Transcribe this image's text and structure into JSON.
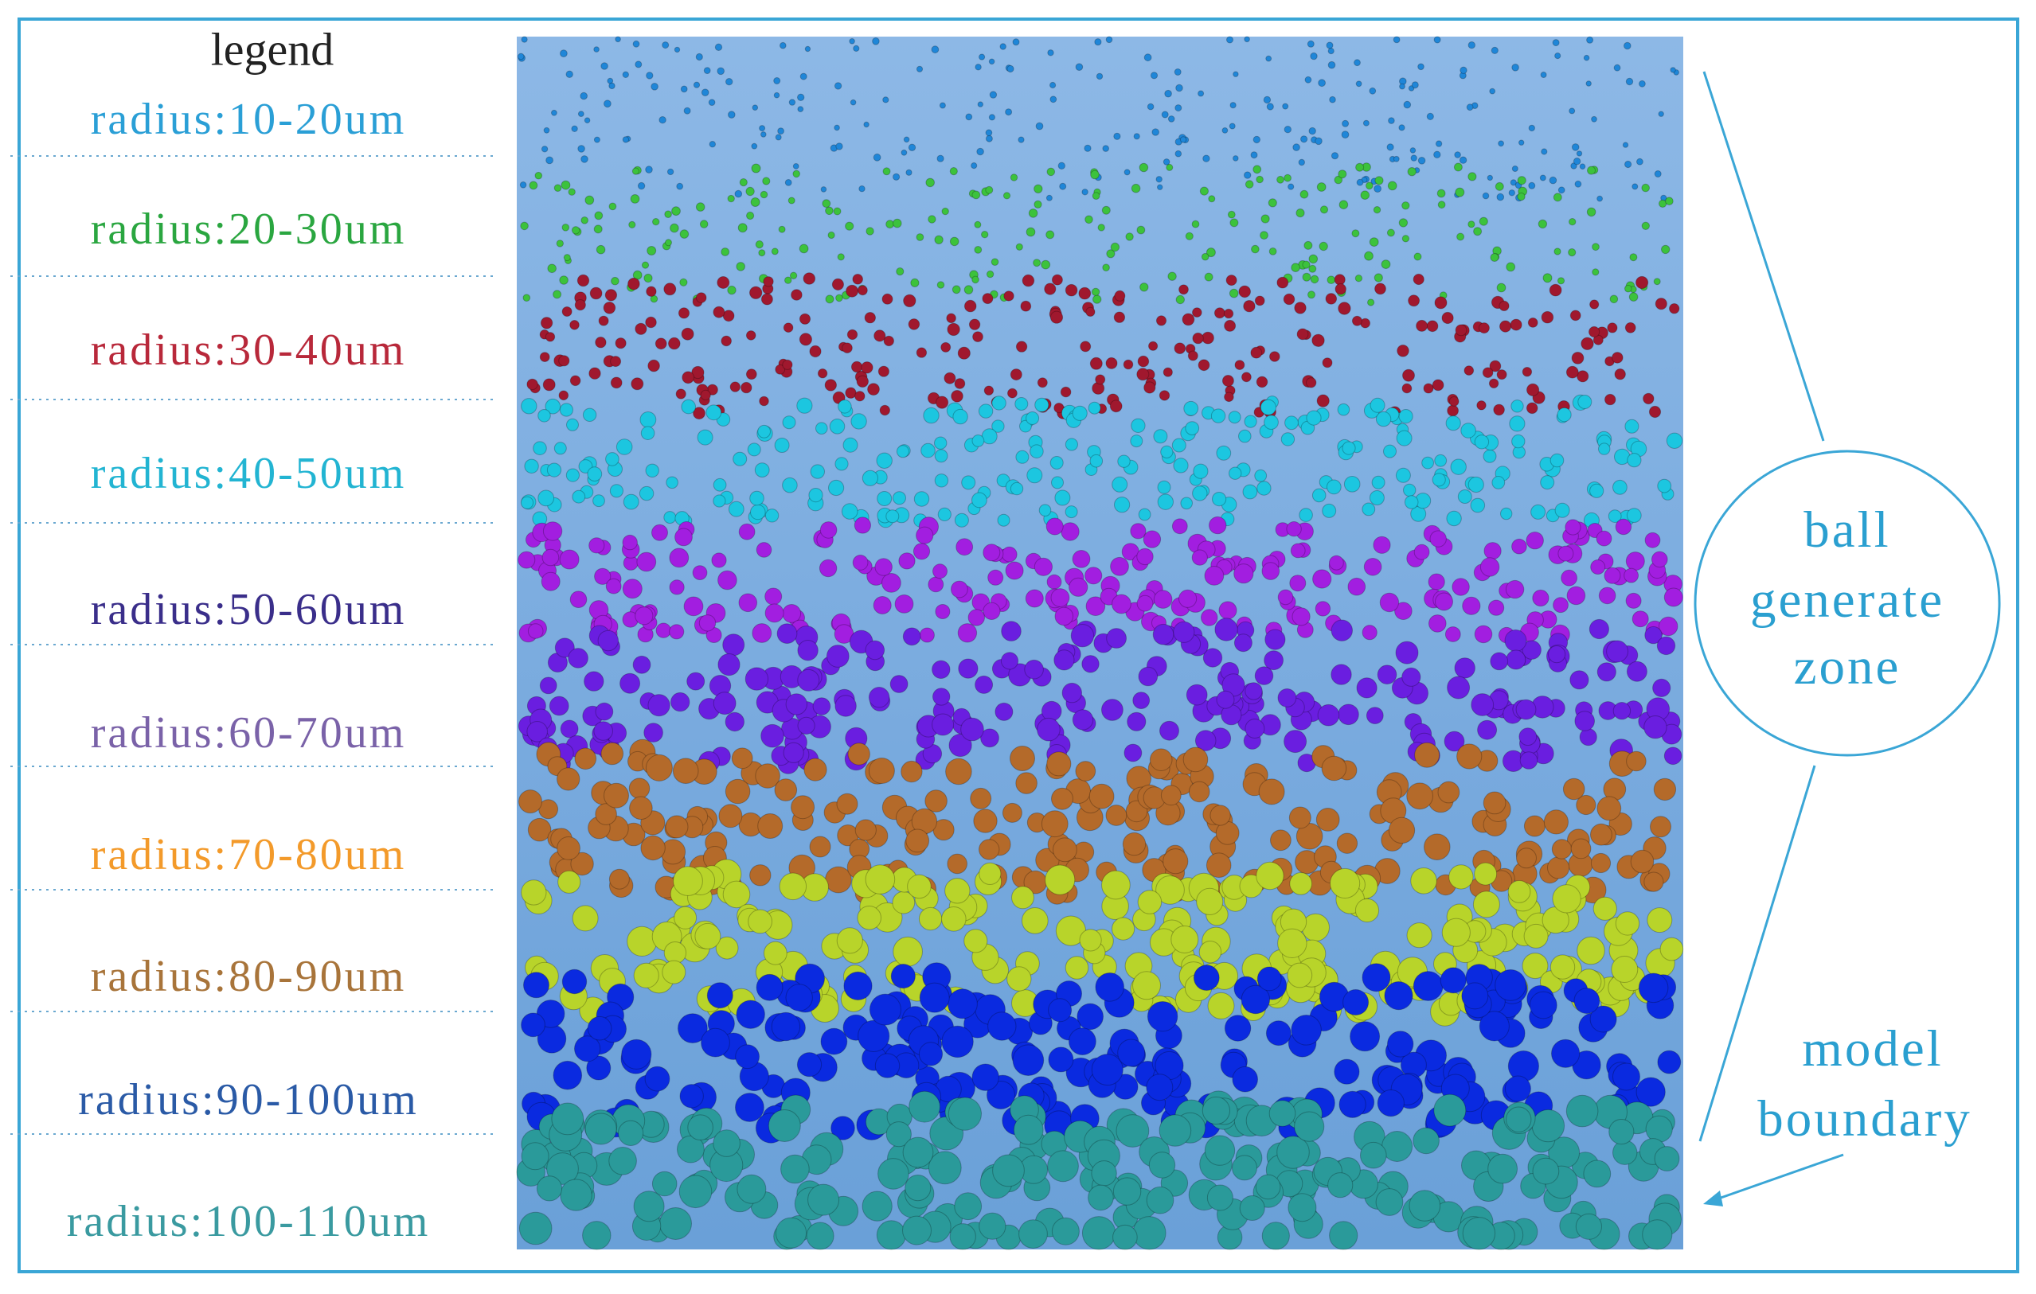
{
  "legend": {
    "title": "legend",
    "items": [
      {
        "label": "radius:10-20um",
        "color": "#2a9fd6"
      },
      {
        "label": "radius:20-30um",
        "color": "#2aa640"
      },
      {
        "label": "radius:30-40um",
        "color": "#b8283a"
      },
      {
        "label": "radius:40-50um",
        "color": "#22b4d2"
      },
      {
        "label": "radius:50-60um",
        "color": "#3a2e8a"
      },
      {
        "label": "radius:60-70um",
        "color": "#7a62a8"
      },
      {
        "label": "radius:70-80um",
        "color": "#f39a2a"
      },
      {
        "label": "radius:80-90um",
        "color": "#a8743a"
      },
      {
        "label": "radius:90-100um",
        "color": "#2a5aa6"
      },
      {
        "label": "radius:100-110um",
        "color": "#3a9aa0"
      }
    ]
  },
  "annotations": {
    "zone": [
      "ball",
      "generate",
      "zone"
    ],
    "boundary": [
      "model",
      "boundary"
    ]
  }
}
